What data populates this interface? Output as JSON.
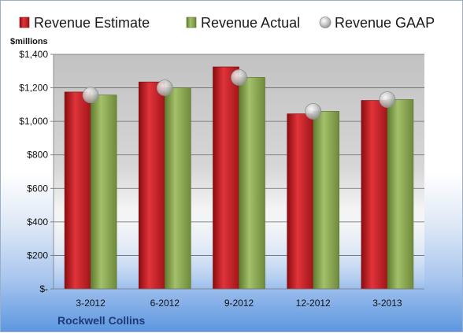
{
  "chart_data": {
    "type": "bar",
    "title": "",
    "subtitle": "",
    "unit_label": "$millions",
    "xlabel": "",
    "ylabel": "",
    "categories": [
      "3-2012",
      "6-2012",
      "9-2012",
      "12-2012",
      "3-2013"
    ],
    "series": [
      {
        "name": "Revenue Estimate",
        "mark": "bar",
        "color": "#c4151c",
        "values": [
          1175,
          1235,
          1325,
          1045,
          1125
        ]
      },
      {
        "name": "Revenue Actual",
        "mark": "bar",
        "color": "#8faa55",
        "values": [
          1157,
          1200,
          1262,
          1060,
          1130
        ]
      },
      {
        "name": "Revenue GAAP",
        "mark": "point",
        "color": "#b9b9b9",
        "values": [
          1157,
          1200,
          1262,
          1060,
          1130
        ]
      }
    ],
    "ylim": [
      0,
      1400
    ],
    "yticks": [
      0,
      200,
      400,
      600,
      800,
      1000,
      1200,
      1400
    ],
    "ytick_labels": [
      "$-",
      "$200",
      "$400",
      "$600",
      "$800",
      "$1,000",
      "$1,200",
      "$1,400"
    ],
    "grid": true,
    "legend_position": "top"
  },
  "footer": {
    "company": "Rockwell Collins"
  }
}
